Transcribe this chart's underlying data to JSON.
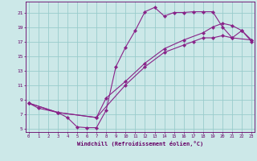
{
  "bg_color": "#cce8e8",
  "grid_color": "#99cccc",
  "line_color": "#882288",
  "spine_color": "#660066",
  "xlim": [
    -0.3,
    23.3
  ],
  "ylim": [
    4.5,
    22.5
  ],
  "xticks": [
    0,
    1,
    2,
    3,
    4,
    5,
    6,
    7,
    8,
    9,
    10,
    11,
    12,
    13,
    14,
    15,
    16,
    17,
    18,
    19,
    20,
    21,
    22,
    23
  ],
  "yticks": [
    5,
    7,
    9,
    11,
    13,
    15,
    17,
    19,
    21
  ],
  "xlabel": "Windchill (Refroidissement éolien,°C)",
  "line1_x": [
    0,
    1,
    3,
    4,
    5,
    6,
    7,
    8,
    9,
    10,
    11,
    12,
    13,
    14,
    15,
    16,
    17,
    18,
    19,
    20,
    21,
    22,
    23
  ],
  "line1_y": [
    8.5,
    7.8,
    7.2,
    6.5,
    5.2,
    5.1,
    5.1,
    7.5,
    13.5,
    16.2,
    18.5,
    21.1,
    21.7,
    20.5,
    21.0,
    21.0,
    21.1,
    21.1,
    21.1,
    19.0,
    17.5,
    18.5,
    17.0
  ],
  "line2_x": [
    0,
    3,
    7,
    8,
    10,
    12,
    14,
    16,
    18,
    19,
    20,
    21,
    22,
    23
  ],
  "line2_y": [
    8.5,
    7.2,
    6.5,
    9.2,
    11.5,
    14.0,
    16.0,
    17.2,
    18.2,
    19.0,
    19.5,
    19.2,
    18.5,
    17.2
  ],
  "line3_x": [
    0,
    3,
    7,
    10,
    12,
    14,
    16,
    17,
    18,
    19,
    20,
    21,
    23
  ],
  "line3_y": [
    8.5,
    7.2,
    6.5,
    11.0,
    13.5,
    15.5,
    16.5,
    17.0,
    17.5,
    17.5,
    17.8,
    17.5,
    17.2
  ]
}
